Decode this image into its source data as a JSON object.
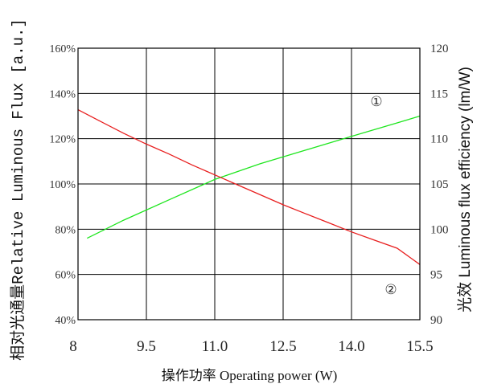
{
  "chart_data": {
    "type": "line",
    "xlabel": "操作功率 Operating power (W)",
    "ylabel_left": "相对光通量Relative Luminous Flux [a.u.]",
    "ylabel_right": "光效 Luminous flux efficiency (lm/W)",
    "xlim": [
      8,
      15.5
    ],
    "x_ticks": [
      "8",
      "9.5",
      "11.0",
      "12.5",
      "14.0",
      "15.5"
    ],
    "ylim_left": [
      40,
      160
    ],
    "y_left_ticks": [
      "40%",
      "60%",
      "80%",
      "100%",
      "120%",
      "140%",
      "160%"
    ],
    "ylim_right": [
      90,
      120
    ],
    "y_right_ticks": [
      "90",
      "95",
      "100",
      "105",
      "110",
      "115",
      "120"
    ],
    "grid": true,
    "annotations": [
      "①",
      "②"
    ],
    "series": [
      {
        "axis": "left",
        "color": "#1ee61e",
        "x": [
          8.2,
          9.0,
          10.0,
          11.0,
          12.0,
          13.0,
          14.0,
          15.0,
          15.5
        ],
        "values": [
          76,
          84,
          93,
          102,
          109,
          115,
          121,
          127,
          130
        ]
      },
      {
        "axis": "right",
        "color": "#e81e1e",
        "x": [
          8.0,
          8.5,
          9.0,
          9.5,
          10.0,
          10.5,
          11.0,
          11.5,
          12.0,
          12.5,
          13.0,
          13.5,
          14.0,
          14.5,
          15.0,
          15.5
        ],
        "values": [
          113.2,
          111.9,
          110.6,
          109.4,
          108.3,
          107.1,
          106.0,
          104.9,
          103.8,
          102.7,
          101.7,
          100.7,
          99.7,
          98.8,
          97.9,
          96.1
        ]
      }
    ]
  }
}
